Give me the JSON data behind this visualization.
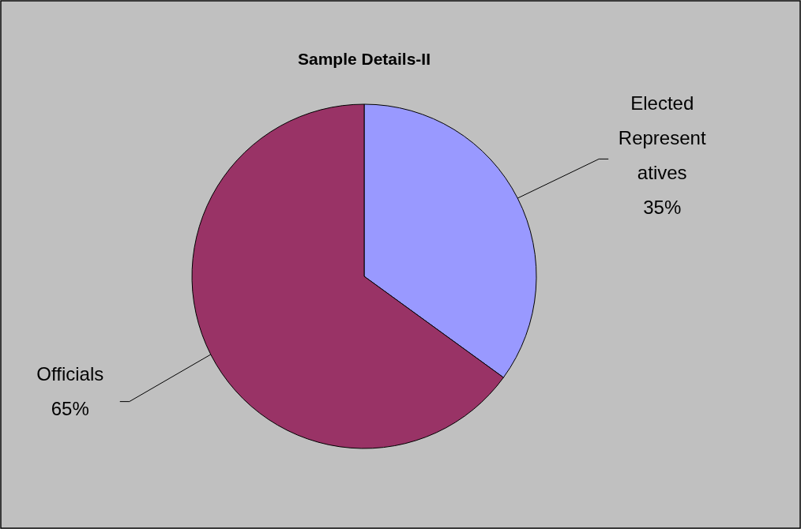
{
  "chart_data": {
    "type": "pie",
    "title": "Sample Details-II",
    "categories": [
      "Elected Representatives",
      "Officials"
    ],
    "values": [
      35,
      65
    ],
    "colors": [
      "#9999ff",
      "#993366"
    ],
    "value_labels": [
      "35%",
      "65%"
    ]
  }
}
